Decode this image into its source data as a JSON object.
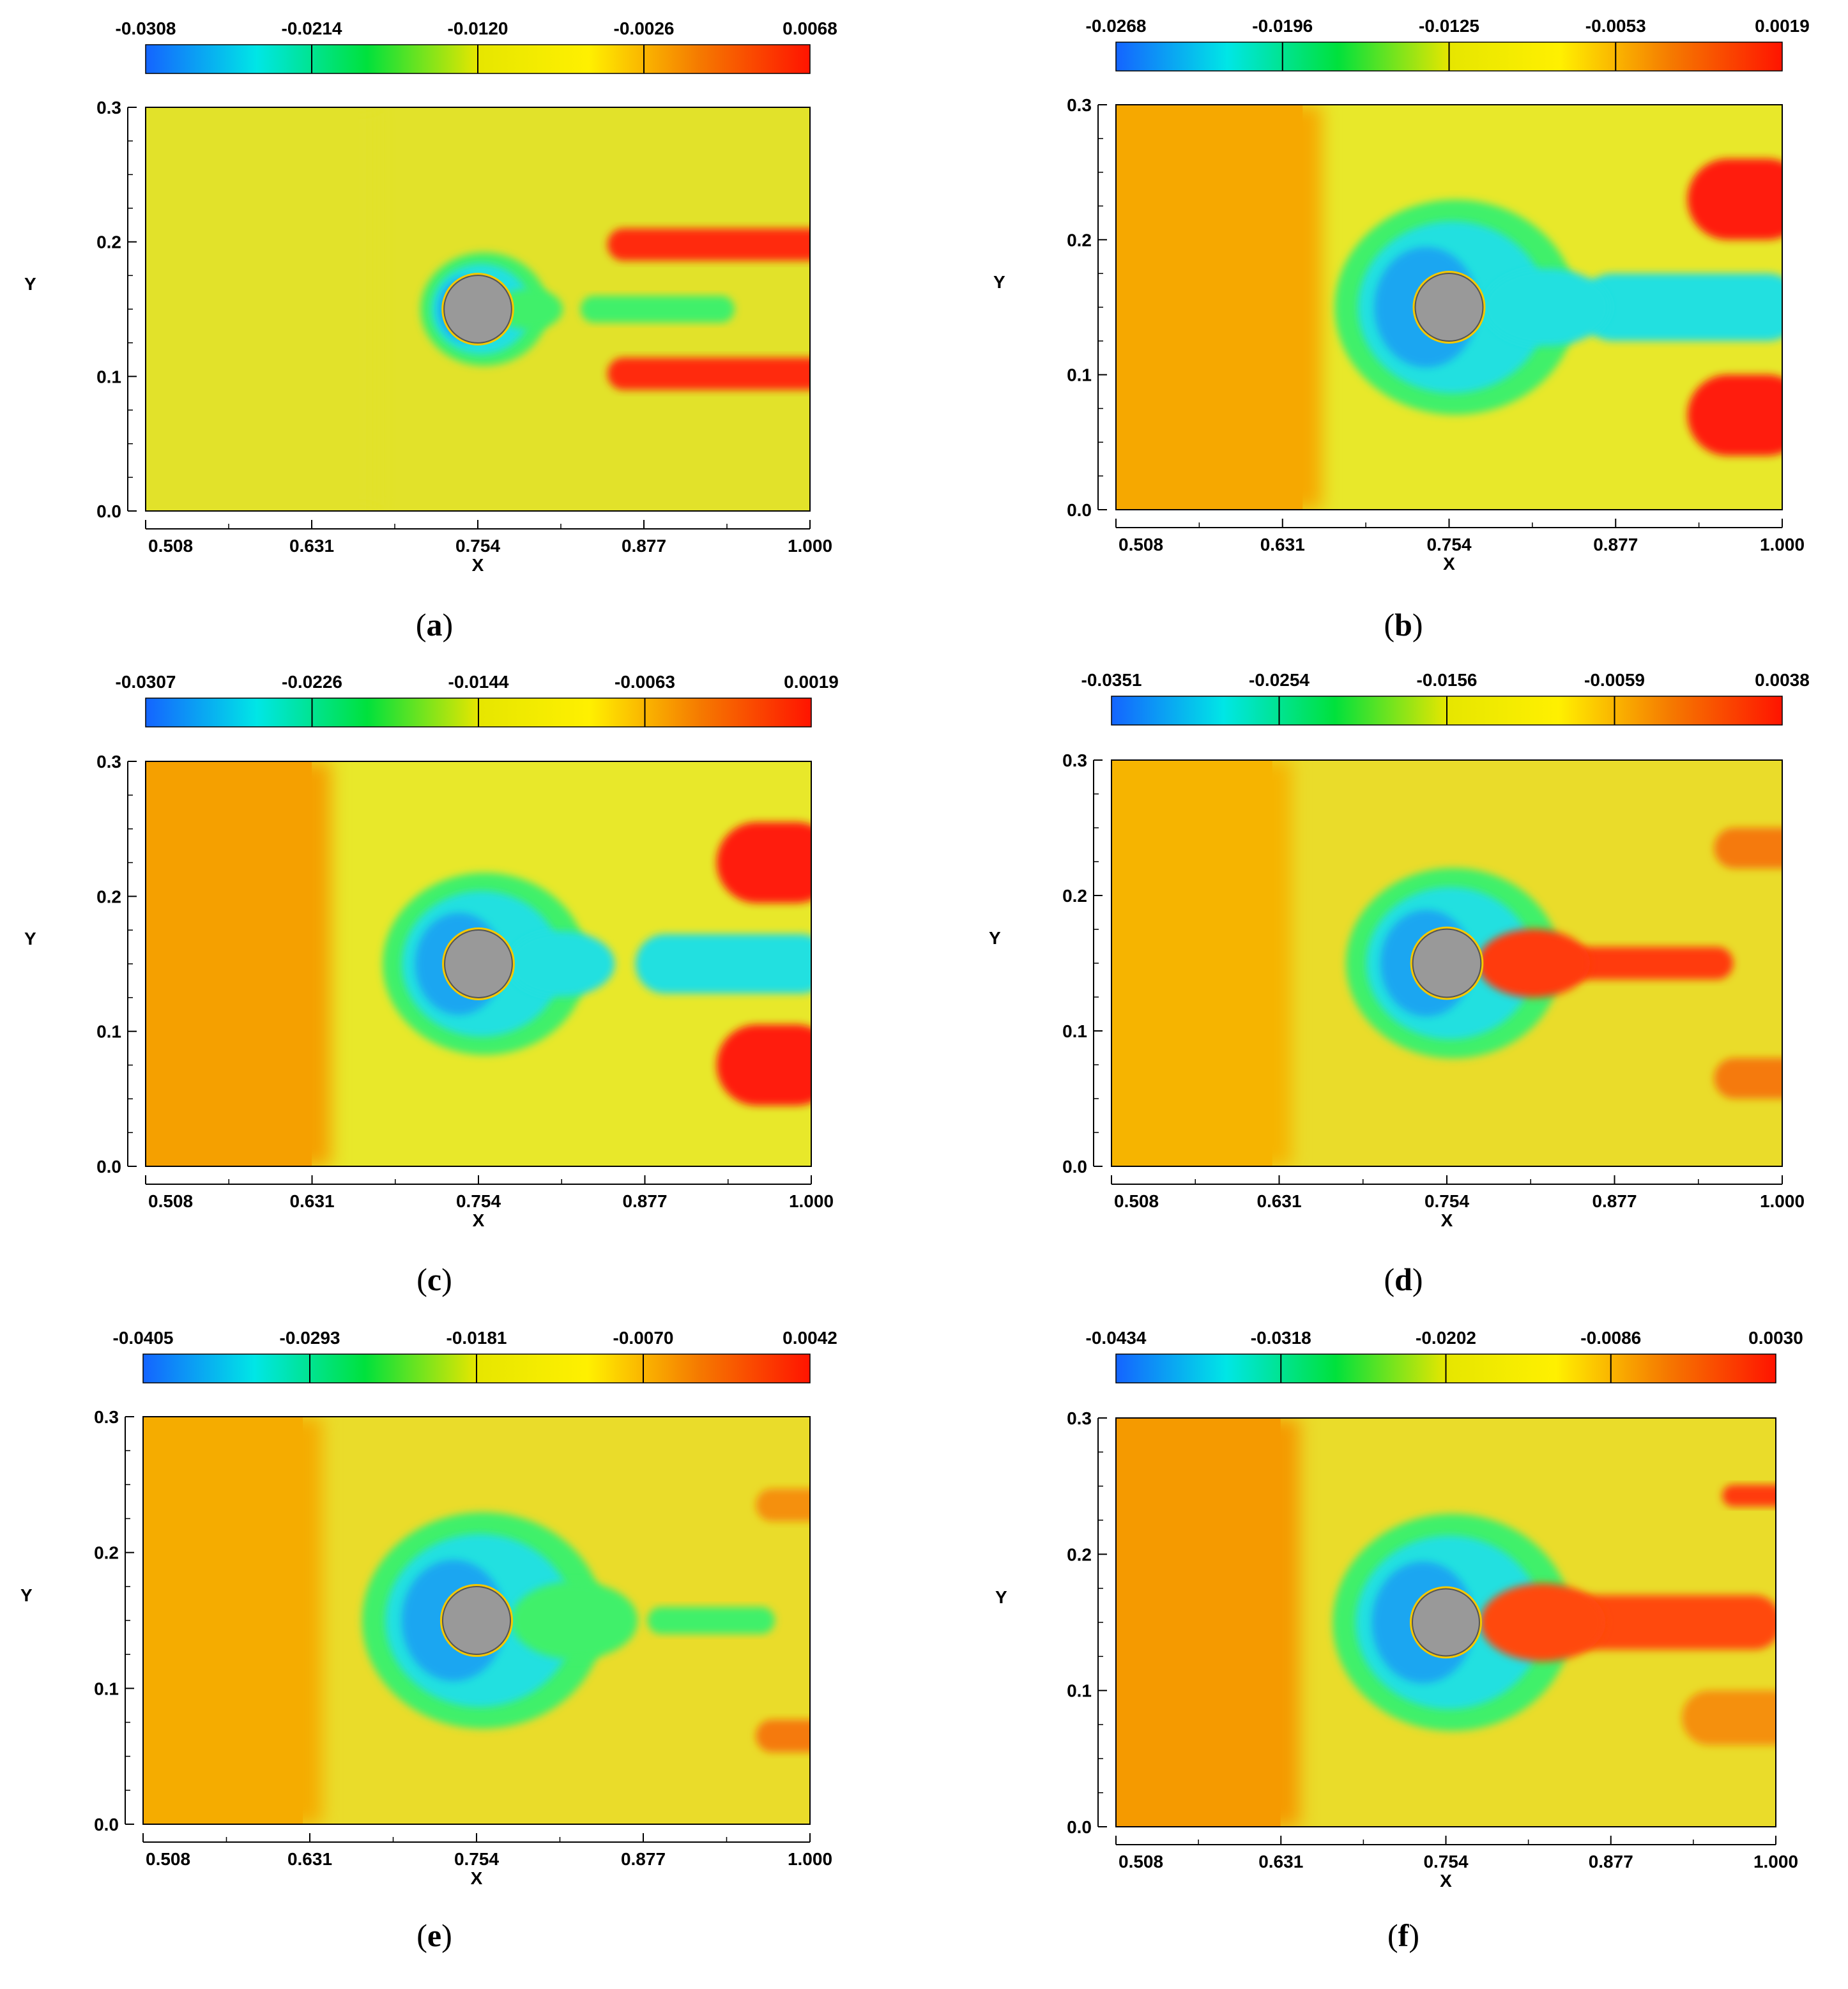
{
  "chart_data": [
    {
      "type": "heatmap",
      "caption": "(a)",
      "caption_letter": "a",
      "xlabel": "X",
      "ylabel": "Y",
      "x_ticks": [
        "0.508",
        "0.631",
        "0.754",
        "0.877",
        "1.000"
      ],
      "y_ticks": [
        "0.0",
        "0.1",
        "0.2",
        "0.3"
      ],
      "xlim": [
        0.508,
        1.0
      ],
      "ylim": [
        0.0,
        0.3
      ],
      "colorbar_ticks": [
        "-0.0308",
        "-0.0214",
        "-0.0120",
        "-0.0026",
        "0.0068"
      ],
      "colorbar_range": [
        -0.0308,
        0.0068
      ],
      "cylinder": {
        "x": 0.754,
        "y": 0.15,
        "r": 0.025
      },
      "background_color": "#e2e22a",
      "upstream_color": "#e2e22a",
      "upstream_x_end": 0.68,
      "wake_jets": [
        {
          "y": 0.198,
          "x_start": 0.85,
          "x_end": 1.0,
          "half_width": 0.012,
          "color": "#ff2a10"
        },
        {
          "y": 0.102,
          "x_start": 0.85,
          "x_end": 1.0,
          "half_width": 0.012,
          "color": "#ff2a10"
        }
      ],
      "wake_core": {
        "y": 0.15,
        "x_start": 0.83,
        "x_end": 0.93,
        "half_width": 0.01,
        "color": "#3ff06a"
      },
      "crescent": {
        "outer": 0.045,
        "color": "#20e0e0"
      }
    },
    {
      "type": "heatmap",
      "caption": "(b)",
      "caption_letter": "b",
      "xlabel": "X",
      "ylabel": "Y",
      "x_ticks": [
        "0.508",
        "0.631",
        "0.754",
        "0.877",
        "1.000"
      ],
      "y_ticks": [
        "0.0",
        "0.1",
        "0.2",
        "0.3"
      ],
      "xlim": [
        0.508,
        1.0
      ],
      "ylim": [
        0.0,
        0.3
      ],
      "colorbar_ticks": [
        "-0.0268",
        "-0.0196",
        "-0.0125",
        "-0.0053",
        "0.0019"
      ],
      "colorbar_range": [
        -0.0268,
        0.0019
      ],
      "cylinder": {
        "x": 0.754,
        "y": 0.15,
        "r": 0.025
      },
      "background_color": "#e8e82a",
      "upstream_color": "#f6a800",
      "upstream_x_end": 0.66,
      "wake_jets": [
        {
          "y": 0.23,
          "x_start": 0.93,
          "x_end": 1.0,
          "half_width": 0.03,
          "color": "#ff1a0a"
        },
        {
          "y": 0.07,
          "x_start": 0.93,
          "x_end": 1.0,
          "half_width": 0.03,
          "color": "#ff1a0a"
        }
      ],
      "wake_core": {
        "y": 0.15,
        "x_start": 0.85,
        "x_end": 1.0,
        "half_width": 0.025,
        "color": "#20e0e0"
      },
      "crescent": {
        "outer": 0.085,
        "color": "#20e0e0"
      }
    },
    {
      "type": "heatmap",
      "caption": "(c)",
      "caption_letter": "c",
      "xlabel": "X",
      "ylabel": "Y",
      "x_ticks": [
        "0.508",
        "0.631",
        "0.754",
        "0.877",
        "1.000"
      ],
      "y_ticks": [
        "0.0",
        "0.1",
        "0.2",
        "0.3"
      ],
      "xlim": [
        0.508,
        1.0
      ],
      "ylim": [
        0.0,
        0.3
      ],
      "colorbar_ticks": [
        "-0.0307",
        "-0.0226",
        "-0.0144",
        "-0.0063",
        "0.0019"
      ],
      "colorbar_range": [
        -0.0307,
        0.0019
      ],
      "cylinder": {
        "x": 0.754,
        "y": 0.15,
        "r": 0.025
      },
      "background_color": "#e8e82a",
      "upstream_color": "#f5a000",
      "upstream_x_end": 0.645,
      "wake_jets": [
        {
          "y": 0.225,
          "x_start": 0.93,
          "x_end": 1.0,
          "half_width": 0.03,
          "color": "#ff1a0a"
        },
        {
          "y": 0.075,
          "x_start": 0.93,
          "x_end": 1.0,
          "half_width": 0.03,
          "color": "#ff1a0a"
        }
      ],
      "wake_core": {
        "y": 0.15,
        "x_start": 0.87,
        "x_end": 1.0,
        "half_width": 0.022,
        "color": "#20e0e0"
      },
      "crescent": {
        "outer": 0.072,
        "color": "#20e0e0"
      }
    },
    {
      "type": "heatmap",
      "caption": "(d)",
      "caption_letter": "d",
      "xlabel": "X",
      "ylabel": "Y",
      "x_ticks": [
        "0.508",
        "0.631",
        "0.754",
        "0.877",
        "1.000"
      ],
      "y_ticks": [
        "0.0",
        "0.1",
        "0.2",
        "0.3"
      ],
      "xlim": [
        0.508,
        1.0
      ],
      "ylim": [
        0.0,
        0.3
      ],
      "colorbar_ticks": [
        "-0.0351",
        "-0.0254",
        "-0.0156",
        "-0.0059",
        "0.0038"
      ],
      "colorbar_range": [
        -0.0351,
        0.0038
      ],
      "cylinder": {
        "x": 0.754,
        "y": 0.15,
        "r": 0.025
      },
      "background_color": "#eadc2a",
      "upstream_color": "#f6b400",
      "upstream_x_end": 0.64,
      "wake_jets": [
        {
          "y": 0.235,
          "x_start": 0.95,
          "x_end": 1.0,
          "half_width": 0.015,
          "color": "#f57a10"
        },
        {
          "y": 0.065,
          "x_start": 0.95,
          "x_end": 1.0,
          "half_width": 0.015,
          "color": "#f57a10"
        }
      ],
      "wake_core": {
        "y": 0.15,
        "x_start": 0.82,
        "x_end": 0.95,
        "half_width": 0.012,
        "color": "#ff3a10"
      },
      "crescent": {
        "outer": 0.075,
        "color": "#20e0e0"
      }
    },
    {
      "type": "heatmap",
      "caption": "(e)",
      "caption_letter": "e",
      "xlabel": "X",
      "ylabel": "Y",
      "x_ticks": [
        "0.508",
        "0.631",
        "0.754",
        "0.877",
        "1.000"
      ],
      "y_ticks": [
        "0.0",
        "0.1",
        "0.2",
        "0.3"
      ],
      "xlim": [
        0.508,
        1.0
      ],
      "ylim": [
        0.0,
        0.3
      ],
      "colorbar_ticks": [
        "-0.0405",
        "-0.0293",
        "-0.0181",
        "-0.0070",
        "0.0042"
      ],
      "colorbar_range": [
        -0.0405,
        0.0042
      ],
      "cylinder": {
        "x": 0.754,
        "y": 0.15,
        "r": 0.025
      },
      "background_color": "#eadc2a",
      "upstream_color": "#f5ac00",
      "upstream_x_end": 0.64,
      "wake_jets": [
        {
          "y": 0.235,
          "x_start": 0.96,
          "x_end": 1.0,
          "half_width": 0.012,
          "color": "#f59010"
        },
        {
          "y": 0.065,
          "x_start": 0.96,
          "x_end": 1.0,
          "half_width": 0.012,
          "color": "#f57a10"
        }
      ],
      "wake_core": {
        "y": 0.15,
        "x_start": 0.88,
        "x_end": 0.96,
        "half_width": 0.01,
        "color": "#3ff06a"
      },
      "crescent": {
        "outer": 0.085,
        "color": "#20e0e0"
      }
    },
    {
      "type": "heatmap",
      "caption": "(f)",
      "caption_letter": "f",
      "xlabel": "X",
      "ylabel": "Y",
      "x_ticks": [
        "0.508",
        "0.631",
        "0.754",
        "0.877",
        "1.000"
      ],
      "y_ticks": [
        "0.0",
        "0.1",
        "0.2",
        "0.3"
      ],
      "xlim": [
        0.508,
        1.0
      ],
      "ylim": [
        0.0,
        0.3
      ],
      "colorbar_ticks": [
        "-0.0434",
        "-0.0318",
        "-0.0202",
        "-0.0086",
        "0.0030"
      ],
      "colorbar_range": [
        -0.0434,
        0.003
      ],
      "cylinder": {
        "x": 0.754,
        "y": 0.15,
        "r": 0.025
      },
      "background_color": "#eadc2a",
      "upstream_color": "#f59a00",
      "upstream_x_end": 0.645,
      "wake_jets": [
        {
          "y": 0.243,
          "x_start": 0.96,
          "x_end": 1.0,
          "half_width": 0.008,
          "color": "#ff3a10"
        },
        {
          "y": 0.08,
          "x_start": 0.93,
          "x_end": 1.0,
          "half_width": 0.02,
          "color": "#f59010"
        }
      ],
      "wake_core": {
        "y": 0.15,
        "x_start": 0.82,
        "x_end": 0.99,
        "half_width": 0.02,
        "color": "#ff4a10"
      },
      "crescent": {
        "outer": 0.085,
        "color": "#20e0e0"
      }
    }
  ],
  "colors": {
    "colormap": [
      "#1464ff",
      "#00e6e6",
      "#00e13c",
      "#e6e600",
      "#fff000",
      "#f57a00",
      "#ff1400"
    ],
    "cylinder_fill": "#999999",
    "cylinder_edge": "#555555",
    "axis_color": "#000000"
  }
}
